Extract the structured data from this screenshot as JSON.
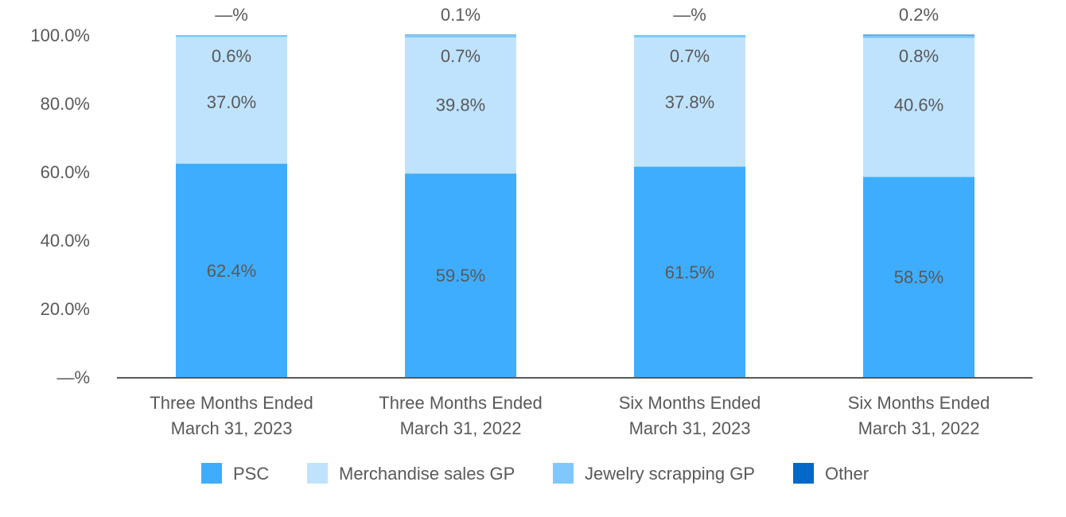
{
  "chart_data": {
    "type": "bar",
    "stacked": true,
    "title": "",
    "xlabel": "",
    "ylabel": "",
    "ylim": [
      0,
      100
    ],
    "yticks": [
      "—%",
      "20.0%",
      "40.0%",
      "60.0%",
      "80.0%",
      "100.0%"
    ],
    "categories": [
      [
        "Three Months Ended",
        "March 31, 2023"
      ],
      [
        "Three Months Ended",
        "March 31, 2022"
      ],
      [
        "Six Months Ended",
        "March 31, 2023"
      ],
      [
        "Six Months Ended",
        "March 31, 2022"
      ]
    ],
    "series": [
      {
        "name": "PSC",
        "color": "#3fadfd",
        "values": [
          62.4,
          59.5,
          61.5,
          58.5
        ],
        "labels": [
          "62.4%",
          "59.5%",
          "61.5%",
          "58.5%"
        ]
      },
      {
        "name": "Merchandise sales GP",
        "color": "#bfe3fd",
        "values": [
          37.0,
          39.8,
          37.8,
          40.6
        ],
        "labels": [
          "37.0%",
          "39.8%",
          "37.8%",
          "40.6%"
        ]
      },
      {
        "name": "Jewelry scrapping GP",
        "color": "#7fc8fd",
        "values": [
          0.6,
          0.7,
          0.7,
          0.8
        ],
        "labels": [
          "0.6%",
          "0.7%",
          "0.7%",
          "0.8%"
        ]
      },
      {
        "name": "Other",
        "color": "#0068c8",
        "values": [
          0,
          0.1,
          0,
          0.2
        ],
        "labels": [
          "—%",
          "0.1%",
          "—%",
          "0.2%"
        ]
      }
    ],
    "legend": "bottom",
    "grid": false
  }
}
